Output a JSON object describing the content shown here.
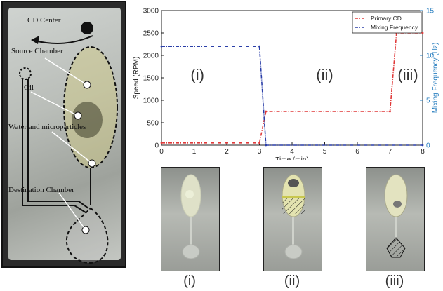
{
  "photo_annotations": {
    "cd_center": "CD Center",
    "source_chamber": "Source Chamber",
    "oil": "Oil",
    "water_microparticles": "Water and microparticles",
    "destination_chamber": "Destination Chamber"
  },
  "chart_data": {
    "type": "line",
    "xlabel": "Time (min)",
    "ylabel_left": "Speed (RPM)",
    "ylabel_right": "Mixing Frequency (Hz)",
    "xlim": [
      0,
      8
    ],
    "ylim_left": [
      0,
      3000
    ],
    "ylim_right": [
      0,
      15
    ],
    "x_ticks": [
      "0",
      "1",
      "2",
      "3",
      "4",
      "5",
      "6",
      "7",
      "8"
    ],
    "y_left_ticks": [
      "0",
      "500",
      "1000",
      "1500",
      "2000",
      "2500",
      "3000"
    ],
    "y_right_ticks": [
      "0",
      "5",
      "10",
      "15"
    ],
    "legend_position": "top-right",
    "grid": false,
    "series": [
      {
        "name": "Primary CD",
        "color": "#e03a3a",
        "axis": "left",
        "points": [
          [
            0,
            50
          ],
          [
            3,
            50
          ],
          [
            3.2,
            750
          ],
          [
            7,
            750
          ],
          [
            7.2,
            2500
          ],
          [
            8,
            2500
          ]
        ]
      },
      {
        "name": "Mixing Frequency",
        "color": "#2b3fa8",
        "axis": "right",
        "points": [
          [
            0,
            11
          ],
          [
            3,
            11
          ],
          [
            3.2,
            0
          ],
          [
            8,
            0
          ]
        ]
      }
    ],
    "region_labels": [
      "(i)",
      "(ii)",
      "(iii)"
    ]
  },
  "thumb_labels": [
    "(i)",
    "(ii)",
    "(iii)"
  ]
}
